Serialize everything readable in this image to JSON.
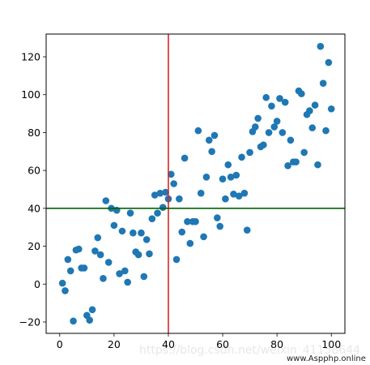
{
  "chart_data": {
    "type": "scatter",
    "title": "",
    "xlabel": "",
    "ylabel": "",
    "xlim": [
      -5,
      105
    ],
    "ylim": [
      -26,
      132
    ],
    "xticks": [
      0,
      20,
      40,
      60,
      80,
      100
    ],
    "yticks": [
      -20,
      0,
      20,
      40,
      60,
      80,
      100,
      120
    ],
    "grid": false,
    "point_color": "#1f77b4",
    "reference_lines": [
      {
        "orientation": "vertical",
        "x": 40,
        "color": "#d62728"
      },
      {
        "orientation": "horizontal",
        "y": 40,
        "color": "#006400"
      }
    ],
    "series": [
      {
        "x": [
          1,
          2,
          3,
          4,
          5,
          6,
          7,
          8,
          9,
          10,
          11,
          12,
          13,
          14,
          15,
          16,
          17,
          18,
          19,
          20,
          21,
          22,
          23,
          24,
          25,
          26,
          27,
          28,
          29,
          30,
          31,
          32,
          33,
          34,
          35,
          36,
          37,
          38,
          39,
          40,
          41,
          42,
          43,
          44,
          45,
          46,
          47,
          48,
          49,
          50,
          51,
          52,
          53,
          54,
          55,
          56,
          57,
          58,
          59,
          60,
          61,
          62,
          63,
          64,
          65,
          66,
          67,
          68,
          69,
          70,
          71,
          72,
          73,
          74,
          75,
          76,
          77,
          78,
          79,
          80,
          81,
          82,
          83,
          84,
          85,
          86,
          87,
          88,
          89,
          90,
          91,
          92,
          93,
          94,
          95,
          96,
          97,
          98,
          99,
          100
        ],
        "y": [
          0.5,
          -3.5,
          13,
          7,
          -19.5,
          18,
          18.5,
          8.5,
          8.5,
          -16.5,
          -19,
          -13.5,
          17.5,
          24.5,
          15.5,
          3,
          44,
          11.5,
          40,
          31,
          39,
          5.5,
          28,
          7,
          1,
          37.5,
          27,
          17,
          15.5,
          27,
          4,
          23.5,
          16,
          34.5,
          47,
          37.5,
          48,
          40.5,
          48.5,
          45,
          58,
          53,
          13,
          45,
          27.5,
          66.5,
          33,
          21.5,
          33,
          33,
          81,
          48,
          25,
          56.5,
          76,
          70,
          78.5,
          35,
          30.5,
          55.5,
          45,
          63,
          56.5,
          47.5,
          57.5,
          46.5,
          67,
          48,
          28.5,
          69.5,
          80.5,
          83,
          87.5,
          72.5,
          73.5,
          98.5,
          80,
          94,
          83,
          86,
          98,
          80,
          96,
          62.5,
          76,
          64.5,
          64.5,
          102,
          100.5,
          69.5,
          89.5,
          91.5,
          82.5,
          94.5,
          63,
          125.5,
          106,
          81,
          117,
          92.5
        ]
      }
    ]
  },
  "watermark": {
    "blog_text": "https://blog.csdn.net/weixin_41158644",
    "site_text": "www.Aspphp.online"
  }
}
